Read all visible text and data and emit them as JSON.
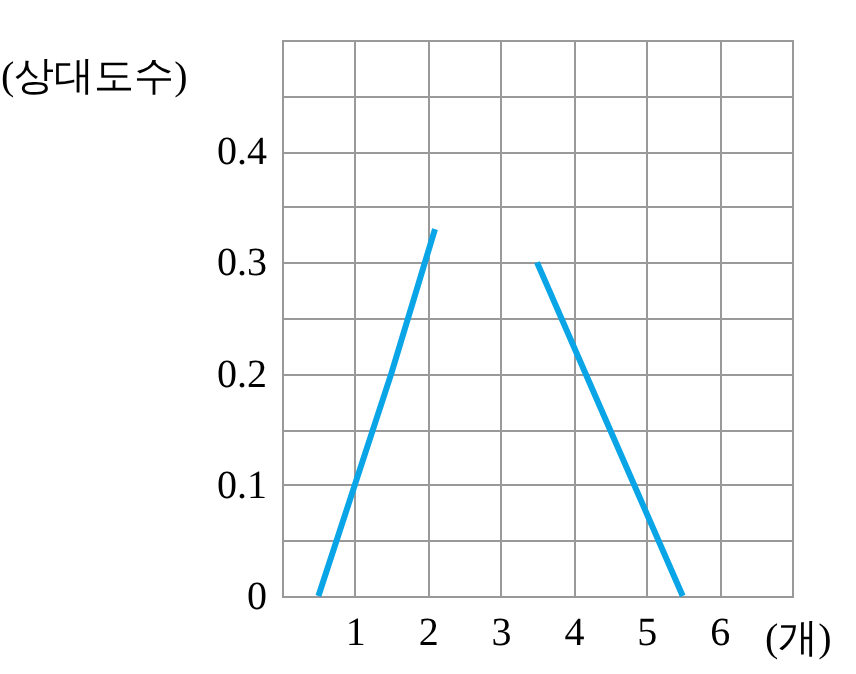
{
  "chart_data": {
    "type": "line",
    "xlabel": "(개)",
    "ylabel": "(상대도수)",
    "series": [
      {
        "color": "#0aa5e6",
        "x": [
          0.5,
          1.5,
          2.1
        ],
        "values": [
          0,
          0.2,
          0.33
        ]
      },
      {
        "color": "#0aa5e6",
        "x": [
          3.5,
          4.5,
          5.5
        ],
        "values": [
          0.3,
          0.15,
          0
        ]
      }
    ],
    "xlim": [
      0,
      7
    ],
    "ylim": [
      0,
      0.5
    ],
    "xticks": [
      {
        "value": 0,
        "label": null
      },
      1,
      2,
      3,
      4,
      5,
      6,
      {
        "value": 7,
        "label": null
      }
    ],
    "yticks": [
      0,
      {
        "value": 0.05,
        "label": null
      },
      0.1,
      {
        "value": 0.15,
        "label": null
      },
      0.2,
      {
        "value": 0.25,
        "label": null
      },
      0.3,
      {
        "value": 0.35,
        "label": null
      },
      0.4,
      {
        "value": 0.45,
        "label": null
      },
      {
        "value": 0.5,
        "label": null
      }
    ],
    "grid": true,
    "marker": "none",
    "line_style": "solid"
  }
}
